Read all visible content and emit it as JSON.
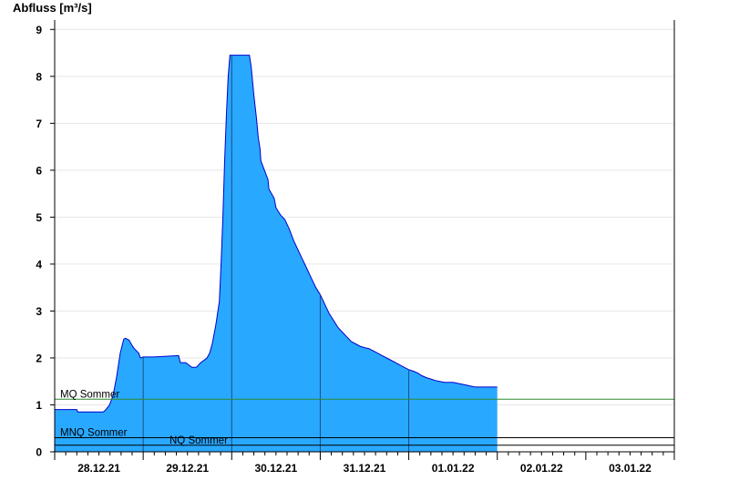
{
  "chart_data": {
    "type": "area",
    "ylabel": "Abfluss [m³/s]",
    "ylim": [
      0,
      9.2
    ],
    "y_ticks": [
      0,
      1,
      2,
      3,
      4,
      5,
      6,
      7,
      8,
      9
    ],
    "x_unit": "days since 27.12.21 12:00",
    "xlim": [
      0,
      7
    ],
    "x_ticks": [
      {
        "pos": 0.5,
        "label": "28.12.21"
      },
      {
        "pos": 1.5,
        "label": "29.12.21"
      },
      {
        "pos": 2.5,
        "label": "30.12.21"
      },
      {
        "pos": 3.5,
        "label": "31.12.21"
      },
      {
        "pos": 4.5,
        "label": "01.01.22"
      },
      {
        "pos": 5.5,
        "label": "02.01.22"
      },
      {
        "pos": 6.5,
        "label": "03.01.22"
      }
    ],
    "grid": true,
    "fill_color": "#29a8ff",
    "line_color": "#0000cc",
    "series": [
      {
        "name": "Abfluss",
        "x": [
          0,
          0.25,
          0.26,
          0.55,
          0.58,
          0.62,
          0.66,
          0.7,
          0.74,
          0.78,
          0.8,
          0.84,
          0.88,
          0.9,
          0.95,
          0.97,
          1.0,
          1.02,
          1.05,
          1.12,
          1.4,
          1.42,
          1.48,
          1.55,
          1.6,
          1.65,
          1.72,
          1.75,
          1.78,
          1.82,
          1.86,
          1.88,
          1.9,
          1.92,
          1.94,
          1.96,
          1.98,
          2.0,
          2.02,
          2.05,
          2.08,
          2.12,
          2.16,
          2.2,
          2.22,
          2.25,
          2.28,
          2.3,
          2.32,
          2.33,
          2.41,
          2.42,
          2.48,
          2.5,
          2.55,
          2.6,
          2.65,
          2.7,
          2.75,
          2.8,
          2.85,
          2.9,
          2.95,
          3.0,
          3.05,
          3.1,
          3.15,
          3.2,
          3.25,
          3.3,
          3.35,
          3.4,
          3.45,
          3.5,
          3.55,
          3.6,
          3.65,
          3.7,
          3.75,
          3.8,
          3.85,
          3.9,
          3.95,
          4.0,
          4.05,
          4.1,
          4.15,
          4.2,
          4.25,
          4.3,
          4.35,
          4.4,
          4.45,
          4.5,
          4.55,
          4.6,
          4.65,
          4.7,
          4.75,
          4.8,
          4.85,
          4.9,
          4.95,
          5.0
        ],
        "y": [
          0.9,
          0.9,
          0.85,
          0.85,
          0.9,
          1.0,
          1.2,
          1.6,
          2.1,
          2.4,
          2.42,
          2.38,
          2.25,
          2.2,
          2.1,
          2.0,
          2.02,
          2.02,
          2.02,
          2.02,
          2.05,
          1.9,
          1.9,
          1.8,
          1.8,
          1.9,
          2.0,
          2.1,
          2.3,
          2.7,
          3.2,
          4.0,
          5.0,
          6.2,
          7.2,
          8.0,
          8.45,
          8.45,
          8.45,
          8.45,
          8.45,
          8.45,
          8.45,
          8.45,
          8.2,
          7.6,
          7.1,
          6.7,
          6.45,
          6.2,
          5.8,
          5.6,
          5.4,
          5.2,
          5.05,
          4.95,
          4.75,
          4.5,
          4.3,
          4.1,
          3.9,
          3.7,
          3.5,
          3.35,
          3.15,
          2.95,
          2.8,
          2.65,
          2.55,
          2.45,
          2.35,
          2.3,
          2.25,
          2.22,
          2.2,
          2.15,
          2.1,
          2.05,
          2.0,
          1.95,
          1.9,
          1.85,
          1.8,
          1.75,
          1.72,
          1.68,
          1.62,
          1.58,
          1.55,
          1.52,
          1.5,
          1.48,
          1.48,
          1.48,
          1.46,
          1.44,
          1.42,
          1.4,
          1.38,
          1.38,
          1.38,
          1.38,
          1.38,
          1.38
        ]
      }
    ],
    "reference_lines": [
      {
        "name": "MQ Sommer",
        "label": "MQ Sommer",
        "value": 1.12,
        "color": "#2e8b2e"
      },
      {
        "name": "MNQ Sommer",
        "label": "MNQ Sommer",
        "value": 0.3,
        "color": "#000000"
      },
      {
        "name": "NQ Sommer",
        "label": "NQ Sommer",
        "value": 0.14,
        "color": "#000000"
      }
    ],
    "day_separators": [
      1.0,
      2.0,
      3.0,
      4.0
    ]
  }
}
